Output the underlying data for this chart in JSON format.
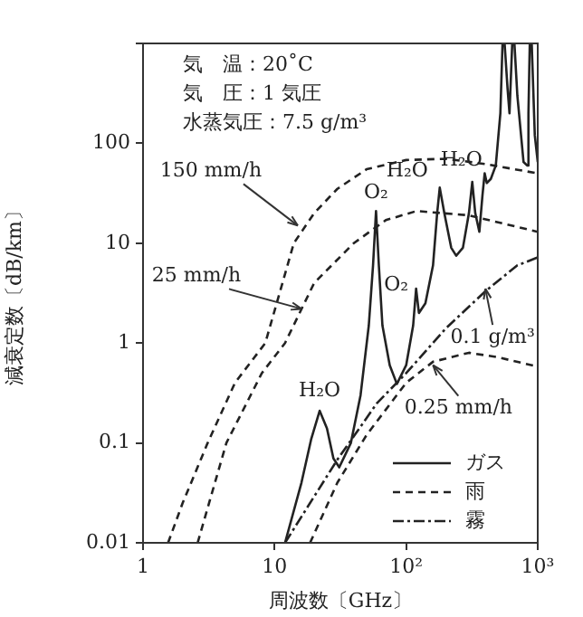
{
  "chart_data": {
    "type": "line",
    "xlabel": "周波数〔GHz〕",
    "ylabel": "減衰定数〔dB/km〕",
    "xlim": [
      1,
      1000
    ],
    "xticks": [
      1,
      10,
      {
        "value": 100,
        "label": "10²"
      },
      {
        "value": 1000,
        "label": "10³"
      }
    ],
    "ylim": [
      0.01,
      1000
    ],
    "yticks": [
      0.01,
      0.1,
      1,
      10,
      100,
      {
        "value": 1000,
        "label": null
      }
    ],
    "log": "xy",
    "grid": false,
    "legend": "bottom right",
    "marker": "none",
    "series": [
      {
        "name": "ガス",
        "color": "#222222",
        "line_style": "solid",
        "x": [
          12,
          16,
          19,
          22,
          25,
          28,
          31,
          38,
          45,
          52,
          56,
          59,
          62,
          66,
          75,
          85,
          100,
          113,
          119,
          125,
          140,
          160,
          172,
          180,
          195,
          220,
          240,
          270,
          300,
          318,
          335,
          360,
          380,
          395,
          410,
          440,
          480,
          520,
          540,
          560,
          590,
          610,
          640,
          665,
          700,
          780,
          830,
          850,
          870,
          900,
          950,
          1000
        ],
        "values": [
          0.01,
          0.04,
          0.11,
          0.21,
          0.14,
          0.07,
          0.057,
          0.1,
          0.3,
          1.5,
          6,
          21,
          6,
          1.5,
          0.6,
          0.39,
          0.6,
          1.5,
          3.5,
          2,
          2.5,
          6,
          20,
          36,
          20,
          9,
          7.5,
          9,
          20,
          41,
          20,
          13,
          30,
          50,
          40,
          44,
          60,
          200,
          1000,
          1000,
          350,
          200,
          1000,
          1000,
          300,
          65,
          60,
          200,
          1000,
          1000,
          120,
          65
        ]
      },
      {
        "name": "雨",
        "color": "#222222",
        "line_style": "dashed",
        "x": [
          1.55,
          2,
          3.1,
          5,
          8.5,
          14,
          20,
          30,
          50,
          100,
          200,
          400,
          1000
        ],
        "values": [
          0.01,
          0.025,
          0.1,
          0.4,
          1,
          10,
          20,
          35,
          55,
          68,
          70,
          62,
          50
        ]
      },
      {
        "color": "#222222",
        "line_style": "dashed",
        "x": [
          2.6,
          4.3,
          8,
          12,
          20,
          40,
          70,
          120,
          300,
          1000
        ],
        "values": [
          0.01,
          0.1,
          0.5,
          1,
          4,
          10,
          17,
          21,
          19,
          13
        ]
      },
      {
        "color": "#222222",
        "line_style": "dashed",
        "x": [
          18.6,
          30,
          50,
          100,
          160,
          300,
          500,
          1000
        ],
        "values": [
          0.01,
          0.04,
          0.12,
          0.4,
          0.65,
          0.8,
          0.72,
          0.58
        ]
      },
      {
        "name": "霧",
        "color": "#222222",
        "line_style": "dashdot",
        "x": [
          12,
          30,
          60,
          100,
          200,
          400,
          700,
          1000
        ],
        "values": [
          0.01,
          0.068,
          0.25,
          0.5,
          1.4,
          3.3,
          6,
          7.2
        ]
      }
    ],
    "annotations": [
      "気　温：20˚C",
      "気　圧：1 気圧",
      "水蒸気圧：7.5 g/m³",
      {
        "text": "150 mm/h",
        "x": 15,
        "y": 15
      },
      {
        "text": "25 mm/h",
        "x": 16,
        "y": 2.2
      },
      {
        "text": "0.1 g/m³",
        "x": 400,
        "y": 3.5
      },
      {
        "text": "0.25 mm/h",
        "x": 160,
        "y": 0.6
      },
      {
        "text": "H₂O",
        "x": 22,
        "y": 0.21
      },
      {
        "text": "O₂",
        "x": 59,
        "y": 21
      },
      {
        "text": "O₂",
        "x": 119,
        "y": 3.5
      },
      {
        "text": "H₂O",
        "x": 180,
        "y": 36
      },
      {
        "text": "H₂O",
        "x": 318,
        "y": 41
      }
    ]
  }
}
